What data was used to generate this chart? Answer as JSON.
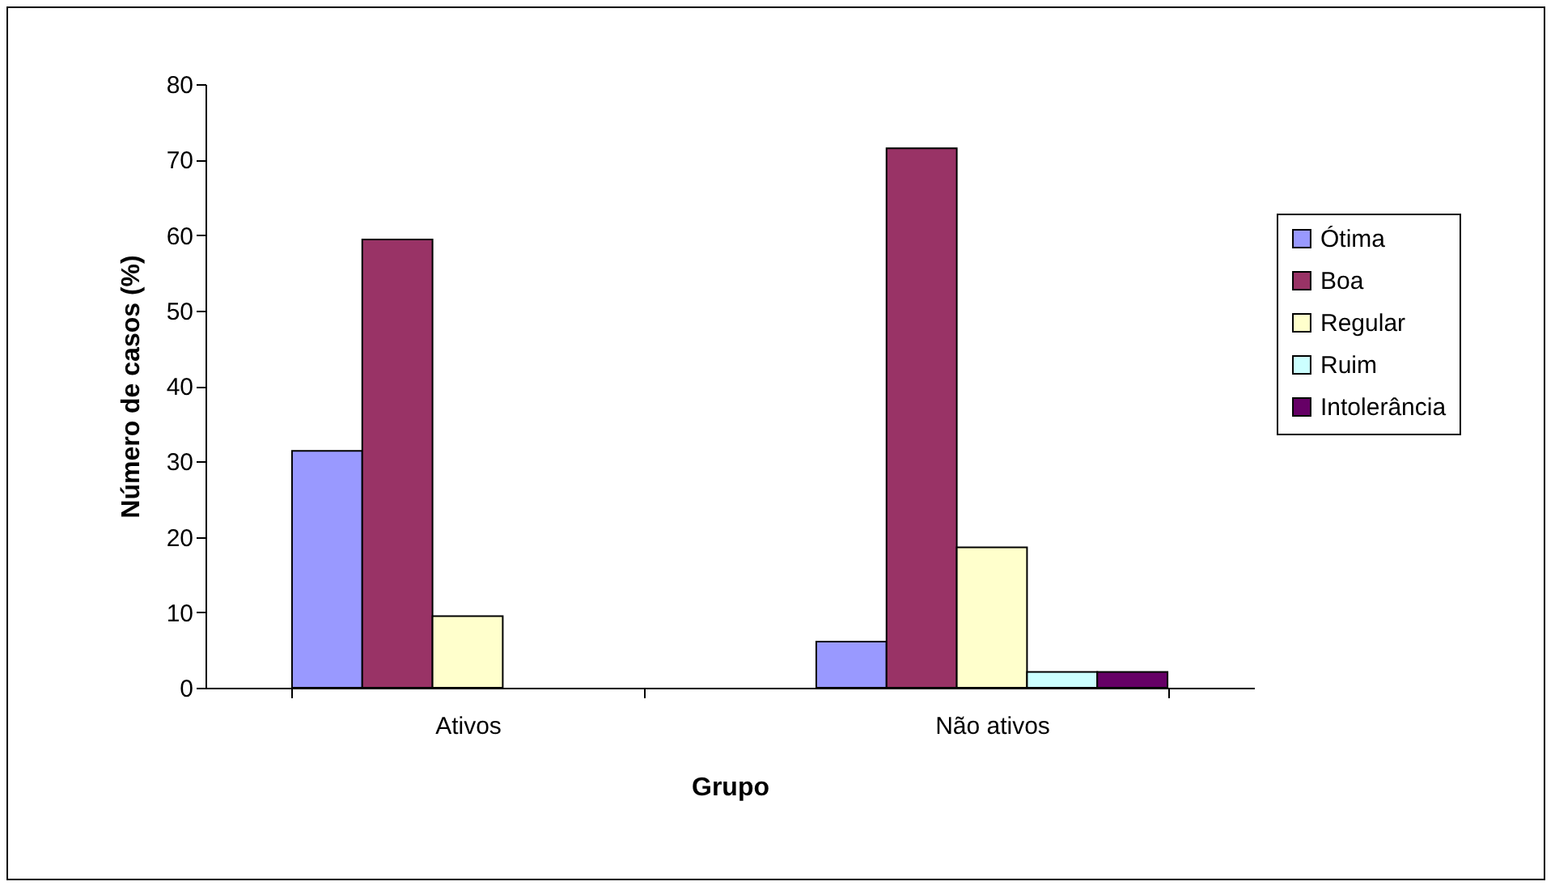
{
  "chart_data": {
    "type": "bar",
    "xlabel": "Grupo",
    "ylabel": "Número de casos (%)",
    "categories": [
      "Ativos",
      "Não ativos"
    ],
    "series": [
      {
        "name": "Ótima",
        "color": "#9999ff",
        "values": [
          31.4,
          6.1
        ]
      },
      {
        "name": "Boa",
        "color": "#993366",
        "values": [
          59.4,
          71.5
        ]
      },
      {
        "name": "Regular",
        "color": "#ffffcc",
        "values": [
          9.5,
          18.6
        ]
      },
      {
        "name": "Ruim",
        "color": "#ccffff",
        "values": [
          null,
          2.1
        ]
      },
      {
        "name": "Intolerância",
        "color": "#660066",
        "values": [
          null,
          2.1
        ]
      }
    ],
    "ylim": [
      0,
      80
    ],
    "yticks": [
      0,
      10,
      20,
      30,
      40,
      50,
      60,
      70,
      80
    ],
    "grid": false,
    "legend": "right"
  }
}
